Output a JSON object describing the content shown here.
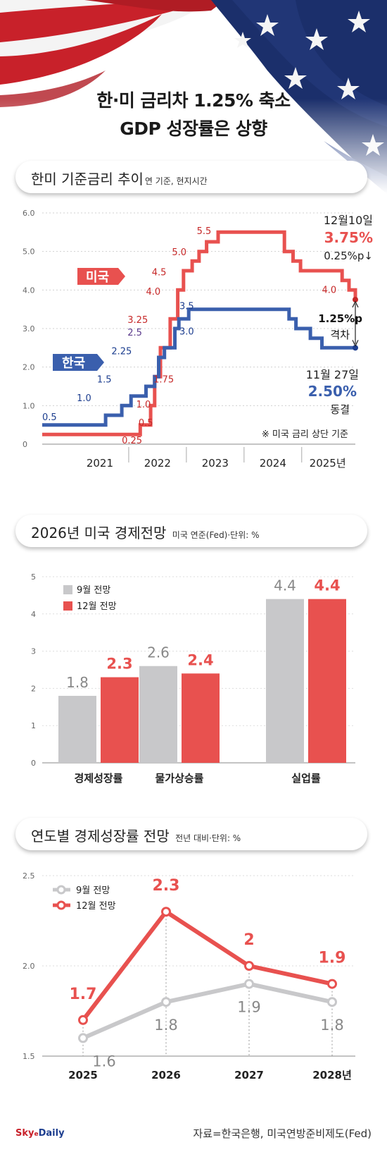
{
  "header": {
    "title_line1": "한·미 금리차 1.25% 축소",
    "title_line2": "GDP 성장률은 상향"
  },
  "colors": {
    "us": "#e8514f",
    "korea": "#3a5fad",
    "gray": "#c8c8ca",
    "dark_red": "#c62828",
    "navy": "#1d3e8f"
  },
  "chart_data": [
    {
      "type": "line",
      "title": "한미 기준금리 추이",
      "subtitle": "연 기준, 현지시간",
      "ylim": [
        0,
        6
      ],
      "yticks": [
        "0",
        "1.0",
        "2.0",
        "3.0",
        "4.0",
        "5.0",
        "6.0"
      ],
      "xticks": [
        "2021",
        "2022",
        "2023",
        "2024",
        "2025년"
      ],
      "xlim": [
        2020.5,
        2025.93
      ],
      "series": [
        {
          "name": "미국",
          "color": "#e8514f",
          "points": [
            [
              2020.5,
              0.25
            ],
            [
              2022.2,
              0.25
            ],
            [
              2022.2,
              0.5
            ],
            [
              2022.38,
              0.5
            ],
            [
              2022.38,
              1.0
            ],
            [
              2022.45,
              1.0
            ],
            [
              2022.45,
              1.75
            ],
            [
              2022.55,
              1.75
            ],
            [
              2022.55,
              2.5
            ],
            [
              2022.72,
              2.5
            ],
            [
              2022.72,
              3.25
            ],
            [
              2022.85,
              3.25
            ],
            [
              2022.85,
              4.0
            ],
            [
              2022.95,
              4.0
            ],
            [
              2022.95,
              4.5
            ],
            [
              2023.1,
              4.5
            ],
            [
              2023.1,
              4.75
            ],
            [
              2023.22,
              4.75
            ],
            [
              2023.22,
              5.0
            ],
            [
              2023.35,
              5.0
            ],
            [
              2023.35,
              5.25
            ],
            [
              2023.55,
              5.25
            ],
            [
              2023.55,
              5.5
            ],
            [
              2024.7,
              5.5
            ],
            [
              2024.7,
              5.0
            ],
            [
              2024.85,
              5.0
            ],
            [
              2024.85,
              4.75
            ],
            [
              2024.98,
              4.75
            ],
            [
              2024.98,
              4.5
            ],
            [
              2025.7,
              4.5
            ],
            [
              2025.7,
              4.25
            ],
            [
              2025.82,
              4.25
            ],
            [
              2025.82,
              4.0
            ],
            [
              2025.93,
              4.0
            ],
            [
              2025.93,
              3.75
            ]
          ]
        },
        {
          "name": "한국",
          "color": "#3a5fad",
          "points": [
            [
              2020.5,
              0.5
            ],
            [
              2021.6,
              0.5
            ],
            [
              2021.6,
              0.75
            ],
            [
              2021.88,
              0.75
            ],
            [
              2021.88,
              1.0
            ],
            [
              2022.04,
              1.0
            ],
            [
              2022.04,
              1.25
            ],
            [
              2022.3,
              1.25
            ],
            [
              2022.3,
              1.5
            ],
            [
              2022.45,
              1.5
            ],
            [
              2022.45,
              1.75
            ],
            [
              2022.52,
              1.75
            ],
            [
              2022.52,
              2.25
            ],
            [
              2022.62,
              2.25
            ],
            [
              2022.62,
              2.5
            ],
            [
              2022.8,
              2.5
            ],
            [
              2022.8,
              3.0
            ],
            [
              2022.87,
              3.0
            ],
            [
              2022.87,
              3.25
            ],
            [
              2023.04,
              3.25
            ],
            [
              2023.04,
              3.5
            ],
            [
              2024.78,
              3.5
            ],
            [
              2024.78,
              3.25
            ],
            [
              2024.9,
              3.25
            ],
            [
              2024.9,
              3.0
            ],
            [
              2025.15,
              3.0
            ],
            [
              2025.15,
              2.75
            ],
            [
              2025.35,
              2.75
            ],
            [
              2025.35,
              2.5
            ],
            [
              2025.93,
              2.5
            ]
          ]
        }
      ],
      "us_labels": [
        "0.25",
        "0.5",
        "1.0",
        "1.75",
        "3.25",
        "4.0",
        "4.5",
        "5.0",
        "5.5",
        "4.0"
      ],
      "kr_labels": [
        "0.5",
        "1.0",
        "1.5",
        "2.25",
        "2.5",
        "3.0",
        "3.5"
      ],
      "series_tags": [
        "미국",
        "한국"
      ],
      "us_annotation": {
        "date": "12월10일",
        "value": "3.75%",
        "change": "0.25%p↓"
      },
      "kr_annotation": {
        "date": "11월 27일",
        "value": "2.50%",
        "change": "동결"
      },
      "gap_annotation": {
        "value": "1.25%p",
        "label": "격차"
      },
      "note": "※ 미국 금리 상단 기준"
    },
    {
      "type": "bar",
      "title": "2026년 미국 경제전망",
      "subtitle": "미국 연준(Fed)·단위: %",
      "ylim": [
        0,
        5
      ],
      "yticks": [
        "0",
        "1",
        "2",
        "3",
        "4",
        "5"
      ],
      "categories": [
        "경제성장률",
        "물가상승률",
        "실업률"
      ],
      "series": [
        {
          "name": "9월 전망",
          "color": "#c8c8ca",
          "values": [
            1.8,
            2.6,
            4.4
          ]
        },
        {
          "name": "12월 전망",
          "color": "#e8514f",
          "values": [
            2.3,
            2.4,
            4.4
          ]
        }
      ]
    },
    {
      "type": "line",
      "title": "연도별 경제성장률 전망",
      "subtitle": "전년 대비·단위: %",
      "ylim": [
        1.5,
        2.5
      ],
      "yticks": [
        "1.5",
        "2.0",
        "2.5"
      ],
      "categories": [
        "2025",
        "2026",
        "2027",
        "2028년"
      ],
      "series": [
        {
          "name": "9월 전망",
          "color": "#c8c8ca",
          "values": [
            1.6,
            1.8,
            1.9,
            1.8
          ]
        },
        {
          "name": "12월 전망",
          "color": "#e8514f",
          "values": [
            1.7,
            2.3,
            2.0,
            1.9
          ]
        }
      ]
    }
  ],
  "footer": {
    "logo_main": "Sky",
    "logo_mid": "e",
    "logo_end": "Daily",
    "source": "자료=한국은행, 미국연방준비제도(Fed)"
  }
}
